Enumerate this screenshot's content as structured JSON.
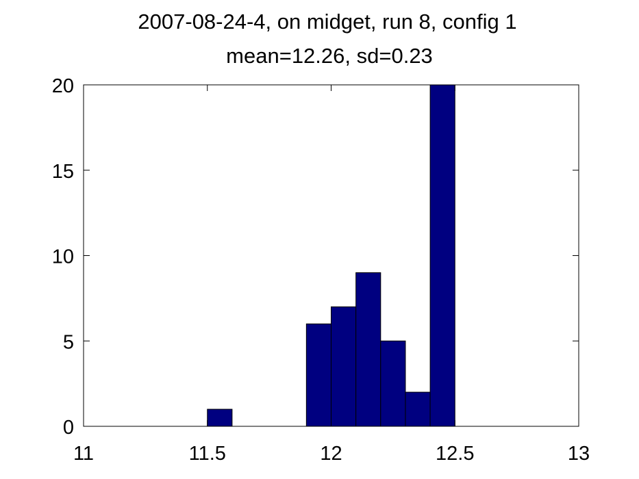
{
  "chart_data": {
    "type": "bar",
    "title": "2007-08-24-4, on midget, run 8, config 1",
    "subtitle": "mean=12.26, sd=0.23",
    "xlabel": "",
    "ylabel": "",
    "xlim": [
      11,
      13
    ],
    "ylim": [
      0,
      20
    ],
    "xticks": [
      11,
      11.5,
      12,
      12.5,
      13
    ],
    "yticks": [
      0,
      5,
      10,
      15,
      20
    ],
    "bin_width": 0.1,
    "bins": [
      {
        "center": 11.55,
        "count": 1
      },
      {
        "center": 11.95,
        "count": 6
      },
      {
        "center": 12.05,
        "count": 7
      },
      {
        "center": 12.15,
        "count": 9
      },
      {
        "center": 12.25,
        "count": 5
      },
      {
        "center": 12.35,
        "count": 2
      },
      {
        "center": 12.45,
        "count": 20
      }
    ],
    "bar_color": "#000080",
    "grid": false
  }
}
